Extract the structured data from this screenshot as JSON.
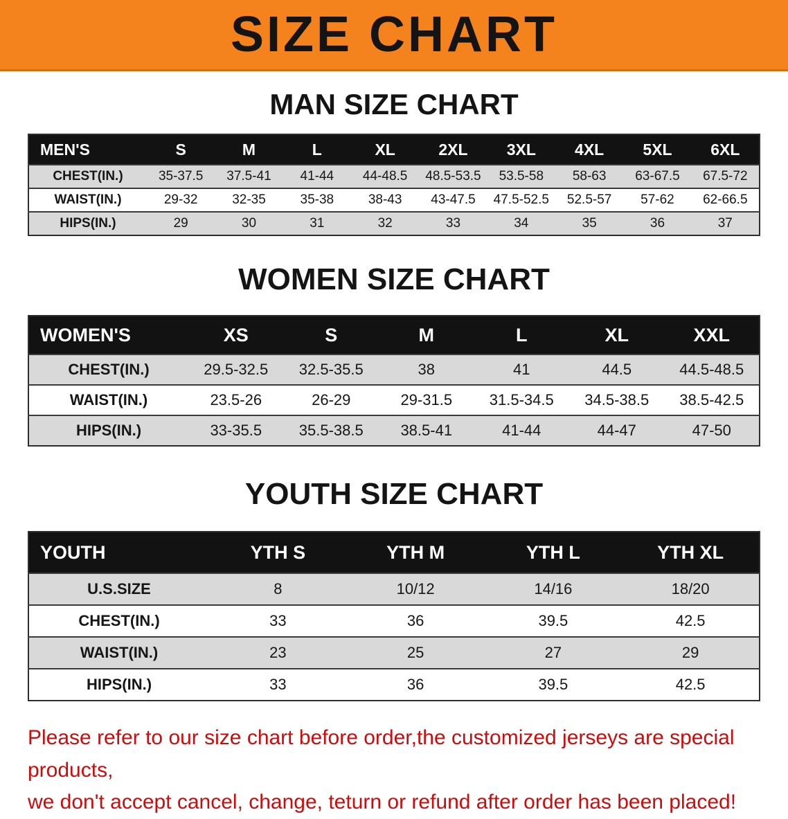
{
  "banner": {
    "title": "SIZE CHART",
    "background_color": "#f5831d",
    "text_color": "#141414"
  },
  "sections": [
    {
      "id": "men",
      "title": "MAN SIZE CHART",
      "table": {
        "header": [
          "MEN'S",
          "S",
          "M",
          "L",
          "XL",
          "2XL",
          "3XL",
          "4XL",
          "5XL",
          "6XL"
        ],
        "rows": [
          [
            "CHEST(IN.)",
            "35-37.5",
            "37.5-41",
            "41-44",
            "44-48.5",
            "48.5-53.5",
            "53.5-58",
            "58-63",
            "63-67.5",
            "67.5-72"
          ],
          [
            "WAIST(IN.)",
            "29-32",
            "32-35",
            "35-38",
            "38-43",
            "43-47.5",
            "47.5-52.5",
            "52.5-57",
            "57-62",
            "62-66.5"
          ],
          [
            "HIPS(IN.)",
            "29",
            "30",
            "31",
            "32",
            "33",
            "34",
            "35",
            "36",
            "37"
          ]
        ]
      }
    },
    {
      "id": "women",
      "title": "WOMEN SIZE CHART",
      "table": {
        "header": [
          "WOMEN'S",
          "XS",
          "S",
          "M",
          "L",
          "XL",
          "XXL"
        ],
        "rows": [
          [
            "CHEST(IN.)",
            "29.5-32.5",
            "32.5-35.5",
            "38",
            "41",
            "44.5",
            "44.5-48.5"
          ],
          [
            "WAIST(IN.)",
            "23.5-26",
            "26-29",
            "29-31.5",
            "31.5-34.5",
            "34.5-38.5",
            "38.5-42.5"
          ],
          [
            "HIPS(IN.)",
            "33-35.5",
            "35.5-38.5",
            "38.5-41",
            "41-44",
            "44-47",
            "47-50"
          ]
        ]
      }
    },
    {
      "id": "youth",
      "title": "YOUTH SIZE CHART",
      "table": {
        "header": [
          "YOUTH",
          "YTH S",
          "YTH M",
          "YTH L",
          "YTH XL"
        ],
        "rows": [
          [
            "U.S.SIZE",
            "8",
            "10/12",
            "14/16",
            "18/20"
          ],
          [
            "CHEST(IN.)",
            "33",
            "36",
            "39.5",
            "42.5"
          ],
          [
            "WAIST(IN.)",
            "23",
            "25",
            "27",
            "29"
          ],
          [
            "HIPS(IN.)",
            "33",
            "36",
            "39.5",
            "42.5"
          ]
        ]
      }
    }
  ],
  "footer": {
    "lines": [
      "Please refer to our size chart before order,the customized jerseys are special products,",
      "we don't accept cancel, change, teturn or refund after order has been placed!"
    ],
    "text_color": "#cf0a0a"
  },
  "colors": {
    "table_header_bg": "#121212",
    "table_header_text": "#ffffff",
    "stripe_row_bg": "#d9d9d9",
    "table_border": "#2e2e2e"
  }
}
